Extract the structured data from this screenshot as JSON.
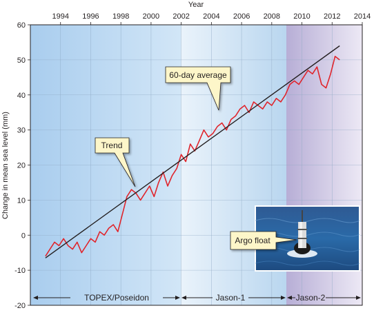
{
  "chart_data": {
    "type": "line",
    "title": "",
    "xlabel": "Year",
    "ylabel": "Change in mean sea level (mm)",
    "xlim": [
      1992,
      2014
    ],
    "ylim": [
      -20,
      60
    ],
    "x_ticks": [
      1994,
      1996,
      1998,
      2000,
      2002,
      2004,
      2006,
      2008,
      2010,
      2012,
      2014
    ],
    "y_ticks": [
      -20,
      -10,
      0,
      10,
      20,
      30,
      40,
      50,
      60
    ],
    "grid": true,
    "series": [
      {
        "color": "#e0242b",
        "x": [
          1993.0,
          1993.3,
          1993.6,
          1993.9,
          1994.2,
          1994.5,
          1994.8,
          1995.1,
          1995.4,
          1995.7,
          1996.0,
          1996.3,
          1996.6,
          1996.9,
          1997.2,
          1997.5,
          1997.8,
          1998.1,
          1998.4,
          1998.7,
          1999.0,
          1999.3,
          1999.6,
          1999.9,
          2000.2,
          2000.5,
          2000.8,
          2001.1,
          2001.4,
          2001.7,
          2002.0,
          2002.3,
          2002.6,
          2002.9,
          2003.2,
          2003.5,
          2003.8,
          2004.1,
          2004.4,
          2004.7,
          2005.0,
          2005.3,
          2005.6,
          2005.9,
          2006.2,
          2006.5,
          2006.8,
          2007.1,
          2007.4,
          2007.7,
          2008.0,
          2008.3,
          2008.6,
          2008.9,
          2009.2,
          2009.5,
          2009.8,
          2010.1,
          2010.4,
          2010.7,
          2011.0,
          2011.3,
          2011.6,
          2011.9,
          2012.2,
          2012.5
        ],
        "y": [
          -6,
          -4,
          -2,
          -3,
          -1,
          -3,
          -4,
          -2,
          -5,
          -3,
          -1,
          -2,
          1,
          0,
          2,
          3,
          1,
          6,
          11,
          13,
          12,
          10,
          12,
          14,
          11,
          15,
          18,
          14,
          17,
          19,
          23,
          21,
          26,
          24,
          27,
          30,
          28,
          29,
          31,
          32,
          30,
          33,
          34,
          36,
          37,
          35,
          38,
          37,
          36,
          38,
          37,
          39,
          38,
          40,
          43,
          44,
          43,
          45,
          47,
          46,
          48,
          43,
          42,
          46,
          51,
          50
        ]
      },
      {
        "color": "#231f20",
        "x": [
          1993.0,
          2012.5
        ],
        "y": [
          -6.5,
          54
        ]
      }
    ],
    "annotations": [
      "60-day average",
      "Trend",
      "Argo float"
    ],
    "missions": [
      {
        "name": "TOPEX/Poseidon",
        "start": 1992,
        "end": 2002,
        "color": "#bcd9f2"
      },
      {
        "name": "Jason-1",
        "start": 2002,
        "end": 2009,
        "color": "#d6e9f8"
      },
      {
        "name": "Jason-2",
        "start": 2009,
        "end": 2014,
        "color": "#cdc6e3"
      }
    ]
  }
}
